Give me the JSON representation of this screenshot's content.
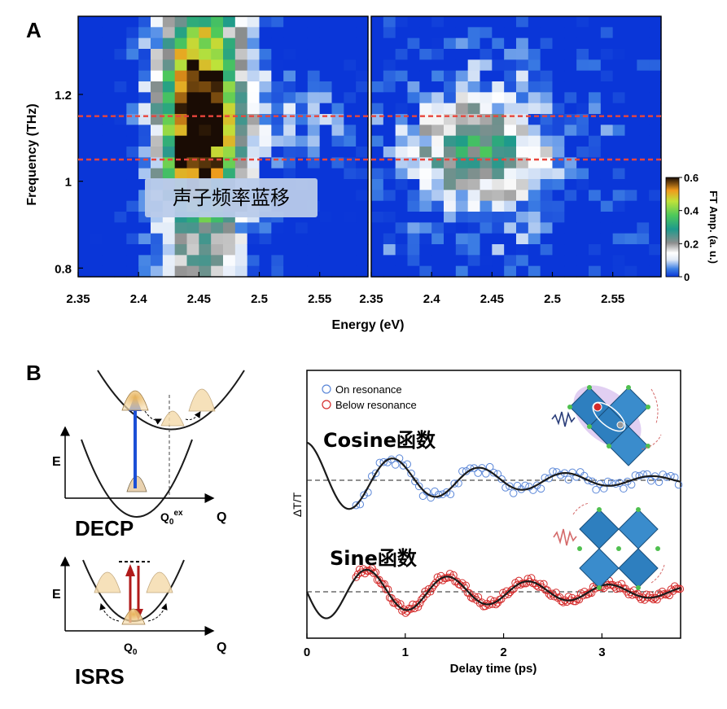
{
  "panel_labels": {
    "a": "A",
    "b": "B"
  },
  "colors": {
    "accent_red": "#e8453c",
    "on_resonance": "#5b87d8",
    "below_resonance": "#d42a2a",
    "fit_line": "#1a1a1a",
    "label_box": "#b9cbea",
    "label_text": "#e41c1c"
  },
  "chart_data": [
    {
      "type": "heatmap",
      "name": "phonon-frequency-map",
      "ylabel": "Frequency (THz)",
      "xlabel": "Energy (eV)",
      "y_ticks": [
        "1.2",
        "1",
        "0.8"
      ],
      "y_tick_values": [
        1.2,
        1.0,
        0.8
      ],
      "ylim": [
        0.78,
        1.38
      ],
      "left_panel": {
        "x_ticks": [
          "2.35",
          "2.4",
          "2.45",
          "2.5",
          "2.55"
        ],
        "x_tick_values": [
          2.35,
          2.4,
          2.45,
          2.5,
          2.55
        ],
        "xlim": [
          2.35,
          2.59
        ],
        "peak_energy": 2.45,
        "peak_frequency": 1.15
      },
      "right_panel": {
        "x_ticks": [
          "2.35",
          "2.4",
          "2.45",
          "2.5",
          "2.55"
        ],
        "x_tick_values": [
          2.35,
          2.4,
          2.45,
          2.5,
          2.55
        ],
        "xlim": [
          2.35,
          2.59
        ],
        "peak_energy": 2.44,
        "peak_frequency": 1.07
      },
      "reference_lines": [
        1.15,
        1.05
      ],
      "annotation": "声子频率蓝移",
      "colorbar": {
        "label": "FT Amp. (a. u.)",
        "ticks": [
          "0.6",
          "0.4",
          "0.2",
          "0"
        ],
        "tick_values": [
          0.6,
          0.4,
          0.2,
          0
        ],
        "range": [
          0,
          0.6
        ]
      }
    },
    {
      "type": "scatter",
      "name": "differential-transmission",
      "xlabel": "Delay time (ps)",
      "ylabel": "ΔT/T",
      "x_ticks": [
        "0",
        "1",
        "2",
        "3"
      ],
      "x_tick_values": [
        0,
        1,
        2,
        3
      ],
      "xlim": [
        0,
        3.8
      ],
      "legend": [
        "On resonance",
        "Below resonance"
      ],
      "series": [
        {
          "name": "On resonance",
          "label": "Cosine函数",
          "function": "cosine",
          "amplitude": 0.11,
          "period_ps": 0.88,
          "damping_ps": 1.6,
          "data_start_ps": 0.5,
          "data_end_ps": 3.8
        },
        {
          "name": "Below resonance",
          "label": "Sine函数",
          "function": "sine",
          "amplitude": 0.085,
          "period_ps": 0.82,
          "damping_ps": 2.2,
          "data_start_ps": 0.5,
          "data_end_ps": 3.8
        }
      ]
    }
  ],
  "diagram_decp": {
    "title": "DECP",
    "axis_e": "E",
    "axis_q": "Q",
    "q_label": "Q",
    "q_sub": "0",
    "q_sup": "ex"
  },
  "diagram_isrs": {
    "title": "ISRS",
    "axis_e": "E",
    "axis_q": "Q",
    "q_label": "Q",
    "q_sub": "0"
  }
}
